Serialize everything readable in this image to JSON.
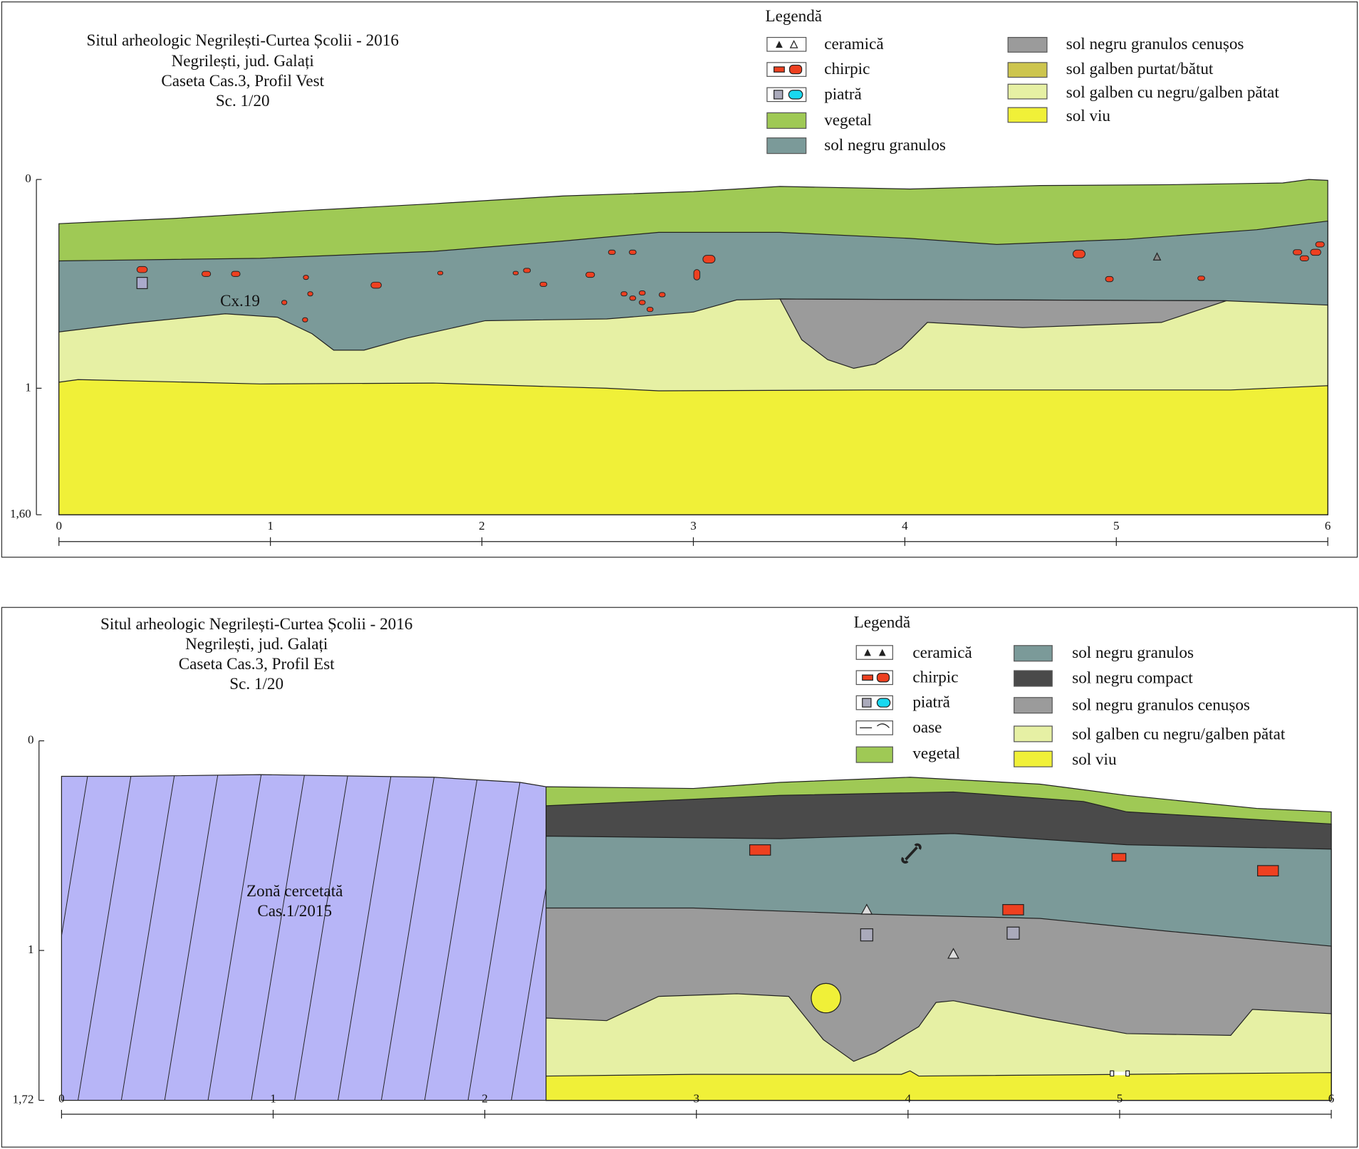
{
  "panels": [
    {
      "title_lines": [
        "Situl arheologic Negrilești-Curtea Școlii - 2016",
        "Negrilești, jud. Galați",
        "Caseta Cas.3, Profil Vest",
        "Sc. 1/20"
      ],
      "legend_title": "Legendă",
      "legend": [
        "ceramică",
        "chirpic",
        "piatră",
        "vegetal",
        "sol negru granulos",
        "sol negru granulos cenușos",
        "sol galben purtat/bătut",
        "sol galben cu negru/galben pătat",
        "sol viu"
      ],
      "x_ticks": [
        "0",
        "1",
        "2",
        "3",
        "4",
        "5",
        "6"
      ],
      "y_ticks": [
        "0",
        "1",
        "1,60"
      ],
      "labels": [
        "Cx.19"
      ]
    },
    {
      "title_lines": [
        "Situl arheologic Negrilești-Curtea Școlii - 2016",
        "Negrilești, jud. Galați",
        "Caseta Cas.3, Profil Est",
        "Sc. 1/20"
      ],
      "legend_title": "Legendă",
      "legend": [
        "ceramică",
        "chirpic",
        "piatră",
        "oase",
        "vegetal",
        "sol negru granulos",
        "sol negru compact",
        "sol negru granulos cenușos",
        "sol galben cu negru/galben pătat",
        "sol viu"
      ],
      "x_ticks": [
        "0",
        "1",
        "2",
        "3",
        "4",
        "5",
        "6"
      ],
      "y_ticks": [
        "0",
        "1",
        "1,72"
      ],
      "labels": [
        "Zonă cercetată",
        "Cas.1/2015"
      ]
    }
  ]
}
